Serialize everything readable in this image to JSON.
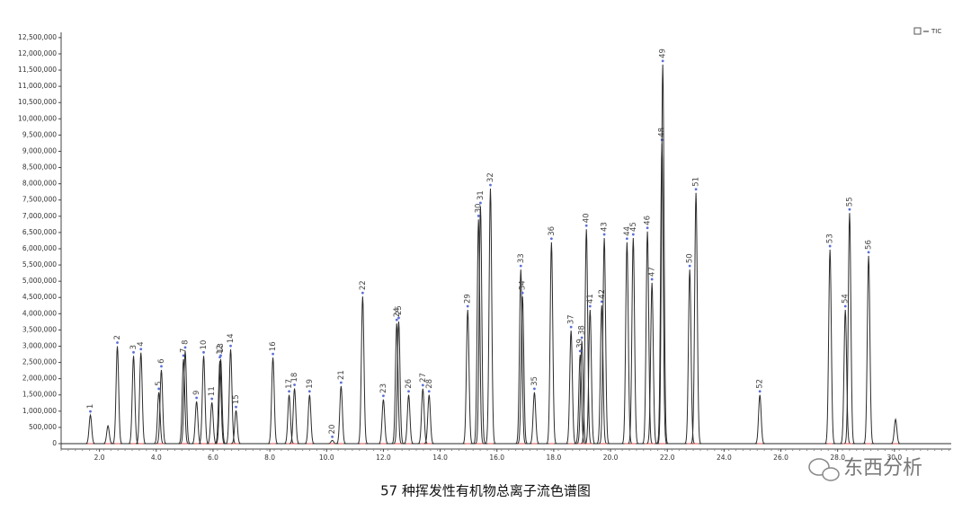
{
  "chart_data": {
    "type": "chromatogram",
    "series": [
      {
        "name": "TIC",
        "color": "#2b2b2b"
      }
    ],
    "legend": "upper right",
    "grid": false,
    "xlim": [
      0.65,
      32.0
    ],
    "ylim": [
      -166000,
      12690000
    ],
    "xticks": [
      {
        "value": 2,
        "label": "2.0"
      },
      {
        "value": 4,
        "label": "4.0"
      },
      {
        "value": 6,
        "label": "6.0"
      },
      {
        "value": 8,
        "label": "8.0"
      },
      {
        "value": 10,
        "label": "10.0"
      },
      {
        "value": 12,
        "label": "12.0"
      },
      {
        "value": 14,
        "label": "14.0"
      },
      {
        "value": 16,
        "label": "16.0"
      },
      {
        "value": 18,
        "label": "18.0"
      },
      {
        "value": 20,
        "label": "20.0"
      },
      {
        "value": 22,
        "label": "22.0"
      },
      {
        "value": 24,
        "label": "24.0"
      },
      {
        "value": 26,
        "label": "26.0"
      },
      {
        "value": 28,
        "label": "28.0"
      },
      {
        "value": 30,
        "label": "30.0"
      }
    ],
    "yticks": [
      0,
      {
        "value": 500000,
        "label": "500,000"
      },
      {
        "value": 1000000,
        "label": "1,000,000"
      },
      {
        "value": 1500000,
        "label": "1,500,000"
      },
      {
        "value": 2000000,
        "label": "2,000,000"
      },
      {
        "value": 2500000,
        "label": "2,500,000"
      },
      {
        "value": 3000000,
        "label": "3,000,000"
      },
      {
        "value": 3500000,
        "label": "3,500,000"
      },
      {
        "value": 4000000,
        "label": "4,000,000"
      },
      {
        "value": 4500000,
        "label": "4,500,000"
      },
      {
        "value": 5000000,
        "label": "5,000,000"
      },
      {
        "value": 5500000,
        "label": "5,500,000"
      },
      {
        "value": 6000000,
        "label": "6,000,000"
      },
      {
        "value": 6500000,
        "label": "6,500,000"
      },
      {
        "value": 7000000,
        "label": "7,000,000"
      },
      {
        "value": 7500000,
        "label": "7,500,000"
      },
      {
        "value": 8000000,
        "label": "8,000,000"
      },
      {
        "value": 8500000,
        "label": "8,500,000"
      },
      {
        "value": 9000000,
        "label": "9,000,000"
      },
      {
        "value": 9500000,
        "label": "9,500,000"
      },
      {
        "value": 10000000,
        "label": "10,000,000"
      },
      {
        "value": 10500000,
        "label": "10,500,000"
      },
      {
        "value": 11000000,
        "label": "11,000,000"
      },
      {
        "value": 11500000,
        "label": "11,500,000"
      },
      {
        "value": 12000000,
        "label": "12,000,000"
      },
      {
        "value": 12500000,
        "label": "12,500,000"
      }
    ],
    "peaks": [
      {
        "time": 1.68,
        "height": 880000,
        "label": "1"
      },
      {
        "time": 2.3,
        "height": 550000,
        "label": null
      },
      {
        "time": 2.63,
        "height": 3000000,
        "label": "2"
      },
      {
        "time": 3.2,
        "height": 2700000,
        "label": "3"
      },
      {
        "time": 3.46,
        "height": 2800000,
        "label": "4"
      },
      {
        "time": 4.09,
        "height": 1580000,
        "label": "5"
      },
      {
        "time": 4.18,
        "height": 2270000,
        "label": "6"
      },
      {
        "time": 4.96,
        "height": 2600000,
        "label": "7"
      },
      {
        "time": 5.02,
        "height": 2850000,
        "label": "8"
      },
      {
        "time": 5.42,
        "height": 1300000,
        "label": "9"
      },
      {
        "time": 5.67,
        "height": 2700000,
        "label": "10"
      },
      {
        "time": 5.96,
        "height": 1270000,
        "label": "11"
      },
      {
        "time": 6.24,
        "height": 2550000,
        "label": "12"
      },
      {
        "time": 6.27,
        "height": 2600000,
        "label": "13"
      },
      {
        "time": 6.62,
        "height": 2900000,
        "label": "14"
      },
      {
        "time": 6.81,
        "height": 1020000,
        "label": "15"
      },
      {
        "time": 8.11,
        "height": 2650000,
        "label": "16"
      },
      {
        "time": 8.68,
        "height": 1500000,
        "label": "17"
      },
      {
        "time": 8.87,
        "height": 1700000,
        "label": "18"
      },
      {
        "time": 9.4,
        "height": 1500000,
        "label": "19"
      },
      {
        "time": 10.2,
        "height": 100000,
        "label": "20"
      },
      {
        "time": 10.51,
        "height": 1770000,
        "label": "21"
      },
      {
        "time": 11.27,
        "height": 4530000,
        "label": "22"
      },
      {
        "time": 12.0,
        "height": 1360000,
        "label": "23"
      },
      {
        "time": 12.47,
        "height": 3700000,
        "label": "24"
      },
      {
        "time": 12.54,
        "height": 3760000,
        "label": "25"
      },
      {
        "time": 12.89,
        "height": 1500000,
        "label": "26"
      },
      {
        "time": 13.39,
        "height": 1690000,
        "label": "27"
      },
      {
        "time": 13.61,
        "height": 1500000,
        "label": "28"
      },
      {
        "time": 14.97,
        "height": 4120000,
        "label": "29"
      },
      {
        "time": 15.35,
        "height": 6900000,
        "label": "30"
      },
      {
        "time": 15.42,
        "height": 7300000,
        "label": "31"
      },
      {
        "time": 15.77,
        "height": 7850000,
        "label": "32"
      },
      {
        "time": 16.84,
        "height": 5360000,
        "label": "33"
      },
      {
        "time": 16.9,
        "height": 4530000,
        "label": "34"
      },
      {
        "time": 17.32,
        "height": 1580000,
        "label": "35"
      },
      {
        "time": 17.92,
        "height": 6200000,
        "label": "36"
      },
      {
        "time": 18.61,
        "height": 3480000,
        "label": "37"
      },
      {
        "time": 18.99,
        "height": 3150000,
        "label": "38"
      },
      {
        "time": 18.93,
        "height": 2740000,
        "label": "39"
      },
      {
        "time": 19.15,
        "height": 6600000,
        "label": "40"
      },
      {
        "time": 19.28,
        "height": 4120000,
        "label": "41"
      },
      {
        "time": 19.69,
        "height": 4260000,
        "label": "42"
      },
      {
        "time": 19.78,
        "height": 6330000,
        "label": "43"
      },
      {
        "time": 20.58,
        "height": 6200000,
        "label": "44"
      },
      {
        "time": 20.8,
        "height": 6330000,
        "label": "45"
      },
      {
        "time": 21.3,
        "height": 6530000,
        "label": "46"
      },
      {
        "time": 21.46,
        "height": 4950000,
        "label": "47"
      },
      {
        "time": 21.81,
        "height": 9240000,
        "label": "48"
      },
      {
        "time": 21.84,
        "height": 11670000,
        "label": "49"
      },
      {
        "time": 22.79,
        "height": 5360000,
        "label": "50"
      },
      {
        "time": 23.01,
        "height": 7720000,
        "label": "51"
      },
      {
        "time": 25.26,
        "height": 1500000,
        "label": "52"
      },
      {
        "time": 27.73,
        "height": 5970000,
        "label": "53"
      },
      {
        "time": 28.27,
        "height": 4120000,
        "label": "54"
      },
      {
        "time": 28.42,
        "height": 7100000,
        "label": "55"
      },
      {
        "time": 29.09,
        "height": 5780000,
        "label": "56"
      },
      {
        "time": 30.04,
        "height": 750000,
        "label": null
      }
    ]
  },
  "caption": "57 种挥发性有机物总离子流色谱图",
  "watermark": "东西分析"
}
